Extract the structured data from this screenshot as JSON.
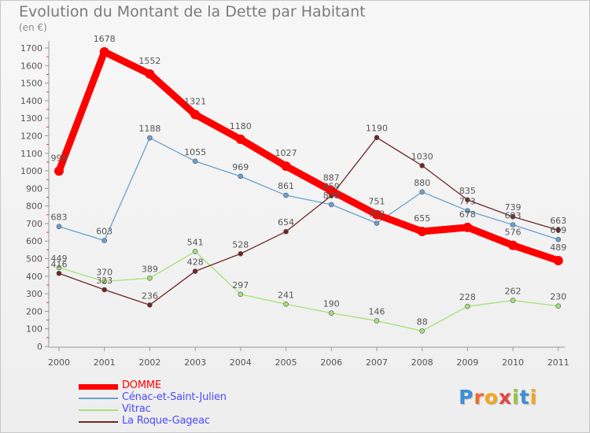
{
  "title": "Evolution du Montant de la Dette par Habitant",
  "unit": "(en €)",
  "logo": {
    "letters": [
      "P",
      "r",
      "o",
      "x",
      "i",
      "t",
      "i"
    ],
    "colors": [
      "#3a8fd6",
      "#ef6b2a",
      "#f2a71b",
      "#e84242",
      "#9ac43a",
      "#3a8fd6",
      "#f2a71b"
    ]
  },
  "chart_data": {
    "type": "line",
    "x": [
      "2000",
      "2001",
      "2002",
      "2003",
      "2004",
      "2005",
      "2006",
      "2007",
      "2008",
      "2009",
      "2010",
      "2011"
    ],
    "ylim": [
      0,
      1700
    ],
    "yticks": [
      0,
      100,
      200,
      300,
      400,
      500,
      600,
      700,
      800,
      900,
      1000,
      1100,
      1200,
      1300,
      1400,
      1500,
      1600,
      1700
    ],
    "grid": false,
    "legend_position": "bottom-left",
    "series": [
      {
        "name": "DOMME",
        "color": "#ff0000",
        "label_color": "#ff0000",
        "emphasis": true,
        "values": [
          999,
          1678,
          1552,
          1321,
          1180,
          1027,
          887,
          751,
          655,
          678,
          576,
          489
        ],
        "labels": [
          "999",
          "1678",
          "1552",
          "1321",
          "1180",
          "1027",
          "887",
          "751",
          "655",
          "678",
          "576",
          "489"
        ]
      },
      {
        "name": "Cénac-et-Saint-Julien",
        "color": "#6aa0d0",
        "label_color": "#4a4aff",
        "emphasis": false,
        "values": [
          683,
          603,
          1188,
          1055,
          969,
          861,
          808,
          702,
          880,
          773,
          693,
          609
        ],
        "labels": [
          "683",
          "603",
          "1188",
          "1055",
          "969",
          "861",
          "808",
          "702",
          "880",
          "773",
          "693",
          "609"
        ]
      },
      {
        "name": "Vitrac",
        "color": "#a6e07a",
        "label_color": "#4a4aff",
        "emphasis": false,
        "values": [
          449,
          370,
          389,
          541,
          297,
          241,
          190,
          146,
          88,
          228,
          262,
          230
        ],
        "labels": [
          "449",
          "370",
          "389",
          "541",
          "297",
          "241",
          "190",
          "146",
          "88",
          "228",
          "262",
          "230"
        ]
      },
      {
        "name": "La Roque-Gageac",
        "color": "#6e2626",
        "label_color": "#4a4aff",
        "emphasis": false,
        "values": [
          416,
          323,
          236,
          428,
          528,
          654,
          859,
          1190,
          1030,
          835,
          739,
          663
        ],
        "labels": [
          "416",
          "323",
          "236",
          "428",
          "528",
          "654",
          "859",
          "1190",
          "1030",
          "835",
          "739",
          "663"
        ]
      }
    ]
  }
}
